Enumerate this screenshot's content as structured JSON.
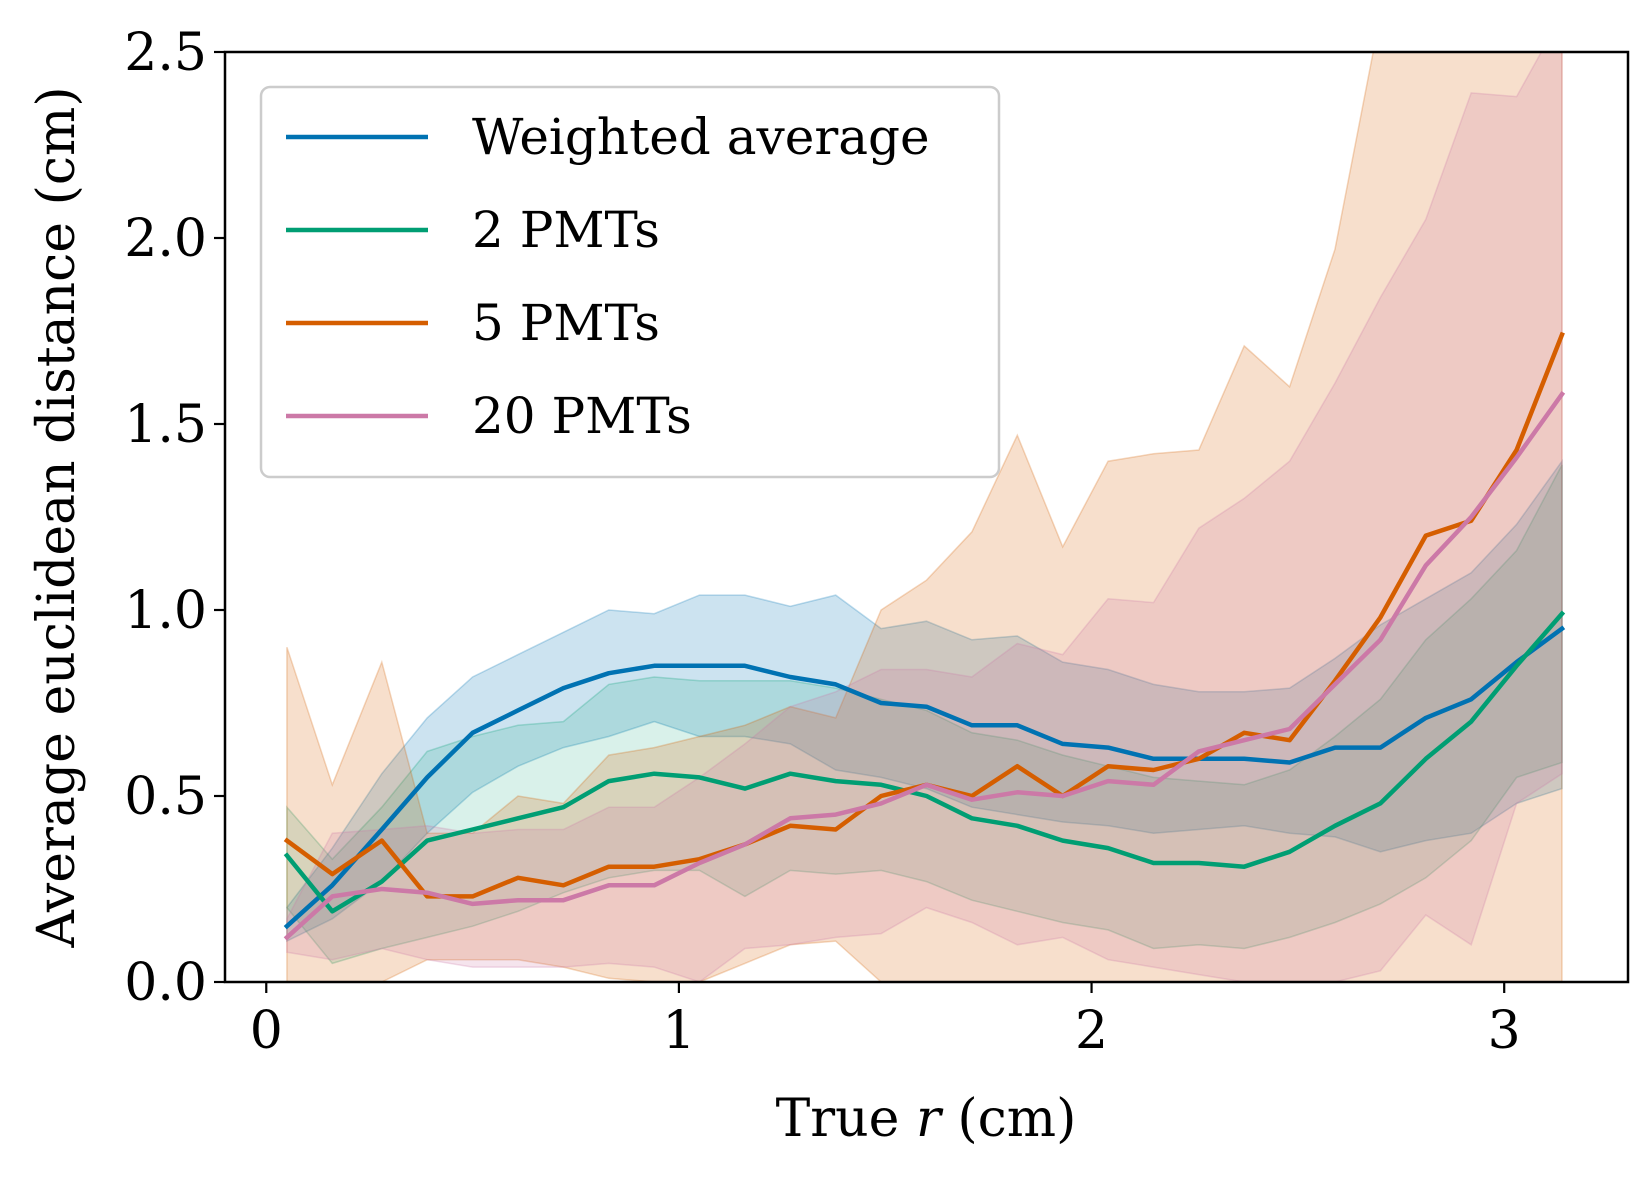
{
  "chart_data": {
    "type": "line",
    "title": "",
    "xlabel_prefix": "True ",
    "xlabel_var": "r",
    "xlabel_suffix": " (cm)",
    "ylabel": "Average euclidean distance (cm)",
    "xlim": [
      -0.1,
      3.3
    ],
    "ylim": [
      0,
      2.5
    ],
    "xticks": [
      0,
      1,
      2,
      3
    ],
    "xtick_labels": [
      "0",
      "1",
      "2",
      "3"
    ],
    "yticks": [
      0,
      0.5,
      1,
      1.5,
      2,
      2.5
    ],
    "ytick_labels": [
      "0.0",
      "0.5",
      "1.0",
      "1.5",
      "2.0",
      "2.5"
    ],
    "grid": false,
    "legend_position": "top-left",
    "x": [
      0.05,
      0.16,
      0.28,
      0.39,
      0.5,
      0.61,
      0.72,
      0.83,
      0.94,
      1.05,
      1.16,
      1.27,
      1.38,
      1.49,
      1.6,
      1.71,
      1.82,
      1.93,
      2.04,
      2.15,
      2.26,
      2.37,
      2.48,
      2.59,
      2.7,
      2.81,
      2.92,
      3.03,
      3.14
    ],
    "series": [
      {
        "name": "Weighted average",
        "color": "#0072b2",
        "fill_alpha": 0.2,
        "values": [
          0.15,
          0.26,
          0.41,
          0.55,
          0.67,
          0.73,
          0.79,
          0.83,
          0.85,
          0.85,
          0.85,
          0.82,
          0.8,
          0.75,
          0.74,
          0.69,
          0.69,
          0.64,
          0.63,
          0.6,
          0.6,
          0.6,
          0.59,
          0.63,
          0.63,
          0.71,
          0.76,
          0.86,
          0.95
        ],
        "upper": [
          0.2,
          0.36,
          0.56,
          0.71,
          0.82,
          0.88,
          0.94,
          1.0,
          0.99,
          1.04,
          1.04,
          1.01,
          1.04,
          0.95,
          0.97,
          0.92,
          0.93,
          0.86,
          0.84,
          0.8,
          0.78,
          0.78,
          0.79,
          0.87,
          0.96,
          1.03,
          1.1,
          1.23,
          1.4
        ],
        "lower": [
          0.11,
          0.17,
          0.27,
          0.4,
          0.51,
          0.58,
          0.63,
          0.66,
          0.7,
          0.66,
          0.66,
          0.64,
          0.57,
          0.55,
          0.52,
          0.47,
          0.45,
          0.43,
          0.42,
          0.4,
          0.41,
          0.42,
          0.4,
          0.39,
          0.35,
          0.38,
          0.4,
          0.48,
          0.52
        ]
      },
      {
        "name": "2 PMTs",
        "color": "#009e73",
        "fill_alpha": 0.15,
        "values": [
          0.34,
          0.19,
          0.27,
          0.38,
          0.41,
          0.44,
          0.47,
          0.54,
          0.56,
          0.55,
          0.52,
          0.56,
          0.54,
          0.53,
          0.5,
          0.44,
          0.42,
          0.38,
          0.36,
          0.32,
          0.32,
          0.31,
          0.35,
          0.42,
          0.48,
          0.6,
          0.7,
          0.85,
          0.99
        ],
        "upper": [
          0.47,
          0.33,
          0.47,
          0.62,
          0.66,
          0.69,
          0.7,
          0.8,
          0.82,
          0.81,
          0.81,
          0.81,
          0.79,
          0.76,
          0.73,
          0.67,
          0.65,
          0.61,
          0.58,
          0.55,
          0.54,
          0.53,
          0.57,
          0.66,
          0.76,
          0.92,
          1.03,
          1.16,
          1.39
        ],
        "lower": [
          0.2,
          0.05,
          0.09,
          0.12,
          0.15,
          0.19,
          0.24,
          0.28,
          0.3,
          0.3,
          0.23,
          0.3,
          0.29,
          0.3,
          0.27,
          0.22,
          0.19,
          0.16,
          0.14,
          0.09,
          0.1,
          0.09,
          0.12,
          0.16,
          0.21,
          0.28,
          0.38,
          0.55,
          0.59
        ]
      },
      {
        "name": "5 PMTs",
        "color": "#d55e00",
        "fill_alpha": 0.2,
        "values": [
          0.38,
          0.29,
          0.38,
          0.23,
          0.23,
          0.28,
          0.26,
          0.31,
          0.31,
          0.33,
          0.37,
          0.42,
          0.41,
          0.5,
          0.53,
          0.5,
          0.58,
          0.5,
          0.58,
          0.57,
          0.6,
          0.67,
          0.65,
          0.81,
          0.98,
          1.2,
          1.24,
          1.43,
          1.74
        ],
        "upper": [
          0.9,
          0.53,
          0.86,
          0.4,
          0.4,
          0.5,
          0.48,
          0.61,
          0.63,
          0.66,
          0.69,
          0.74,
          0.71,
          1.0,
          1.08,
          1.21,
          1.47,
          1.17,
          1.4,
          1.42,
          1.43,
          1.71,
          1.6,
          1.97,
          2.6,
          2.6,
          2.6,
          2.6,
          2.6
        ],
        "lower": [
          0.0,
          0.0,
          0.0,
          0.06,
          0.06,
          0.06,
          0.04,
          0.01,
          0.0,
          0.0,
          0.05,
          0.1,
          0.11,
          0.0,
          0.0,
          0.0,
          0.0,
          0.0,
          0.0,
          0.0,
          0.0,
          0.0,
          0.0,
          0.0,
          0.0,
          0.0,
          0.0,
          0.0,
          0.0
        ]
      },
      {
        "name": "20 PMTs",
        "color": "#cc79a7",
        "fill_alpha": 0.2,
        "values": [
          0.12,
          0.23,
          0.25,
          0.24,
          0.21,
          0.22,
          0.22,
          0.26,
          0.26,
          0.32,
          0.37,
          0.44,
          0.45,
          0.48,
          0.53,
          0.49,
          0.51,
          0.5,
          0.54,
          0.53,
          0.62,
          0.65,
          0.68,
          0.8,
          0.92,
          1.12,
          1.25,
          1.41,
          1.58
        ],
        "upper": [
          0.17,
          0.4,
          0.41,
          0.42,
          0.4,
          0.41,
          0.41,
          0.47,
          0.47,
          0.55,
          0.64,
          0.74,
          0.78,
          0.84,
          0.84,
          0.82,
          0.91,
          0.88,
          1.03,
          1.02,
          1.22,
          1.3,
          1.4,
          1.61,
          1.84,
          2.05,
          2.39,
          2.38,
          2.6
        ],
        "lower": [
          0.08,
          0.06,
          0.09,
          0.06,
          0.04,
          0.04,
          0.04,
          0.05,
          0.04,
          0.0,
          0.09,
          0.1,
          0.12,
          0.13,
          0.2,
          0.16,
          0.1,
          0.12,
          0.06,
          0.04,
          0.02,
          0.0,
          0.0,
          0.0,
          0.03,
          0.18,
          0.1,
          0.48,
          0.56
        ]
      }
    ]
  }
}
